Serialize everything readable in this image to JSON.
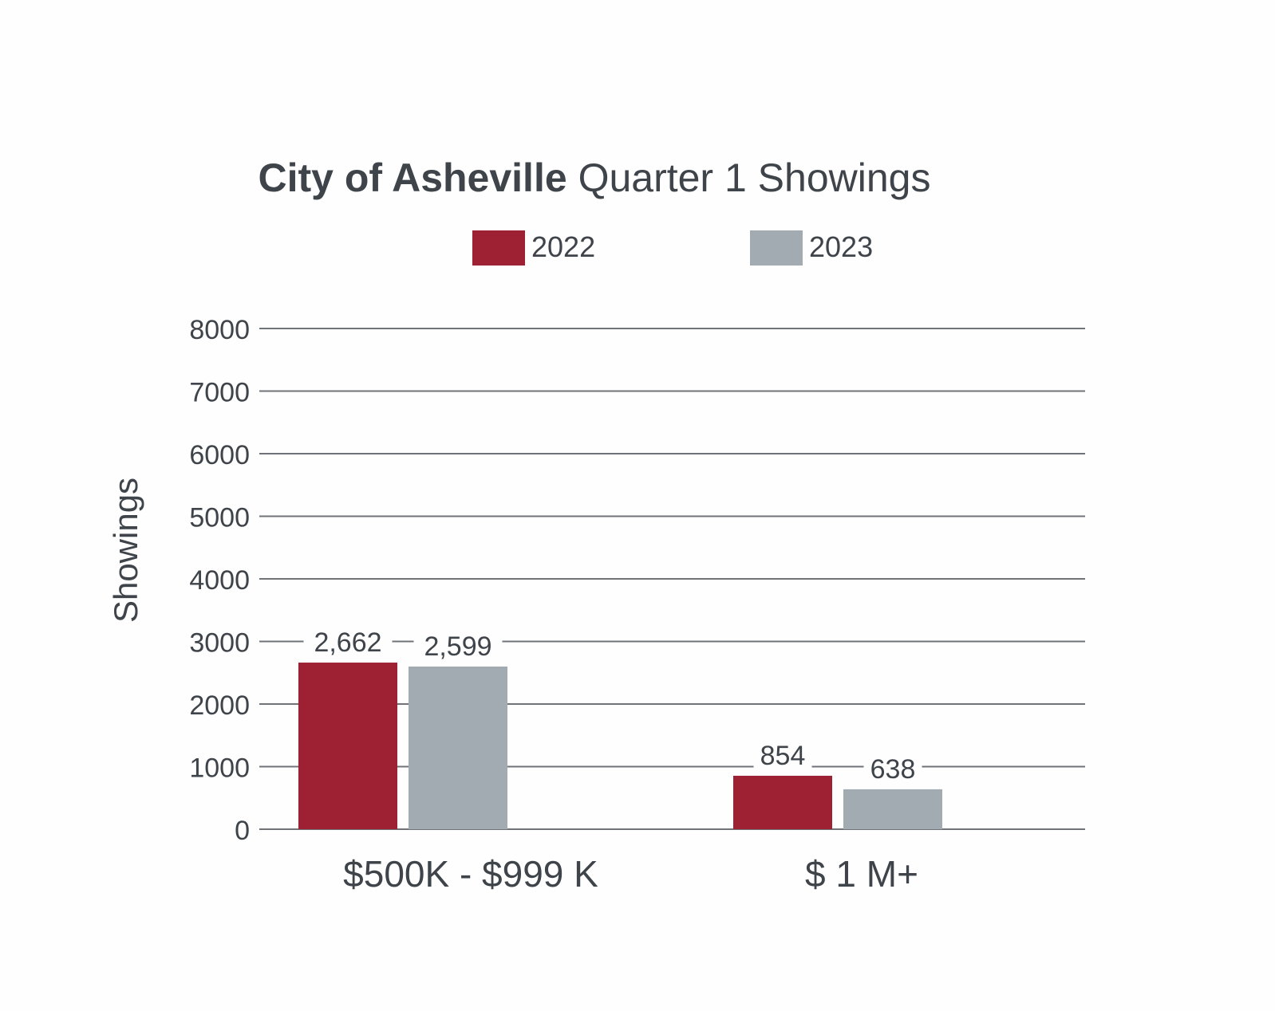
{
  "chart_data": {
    "type": "bar",
    "title_bold": "City of Asheville",
    "title_rest": "Quarter 1 Showings",
    "ylabel": "Showings",
    "xlabel": "",
    "categories": [
      "$500K - $999 K",
      "$ 1 M+"
    ],
    "series": [
      {
        "name": "2022",
        "color": "#9e2133",
        "values": [
          2662,
          854
        ],
        "labels": [
          "2,662",
          "854"
        ]
      },
      {
        "name": "2023",
        "color": "#a2abb1",
        "values": [
          2599,
          638
        ],
        "labels": [
          "2,599",
          "638"
        ]
      }
    ],
    "ylim": [
      0,
      8000
    ],
    "yticks": [
      0,
      1000,
      2000,
      3000,
      4000,
      5000,
      6000,
      7000,
      8000
    ],
    "grid": true,
    "legend_position": "top-center"
  }
}
